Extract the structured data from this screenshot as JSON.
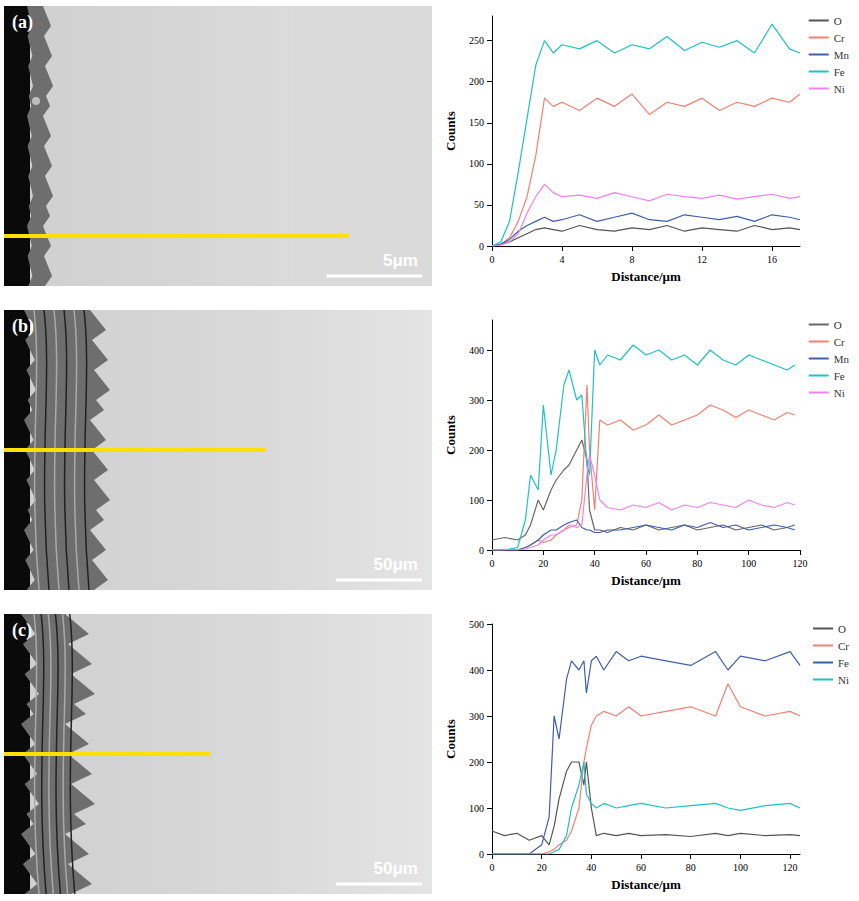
{
  "images": [
    {
      "label": "(a)",
      "scale_bar": "5μm"
    },
    {
      "label": "(b)",
      "scale_bar": "50μm"
    },
    {
      "label": "(c)",
      "scale_bar": "50μm"
    }
  ],
  "chart_data": [
    {
      "type": "line",
      "x_label": "Distance/μm",
      "y_label": "Counts",
      "legend": "right",
      "grid": false,
      "xlim": [
        0,
        17.6
      ],
      "xticks": [
        0,
        4,
        8,
        12,
        16
      ],
      "ylim": [
        0,
        280
      ],
      "yticks": [
        0,
        50,
        100,
        150,
        200,
        250
      ],
      "x": [
        0,
        0.5,
        1,
        1.5,
        2,
        2.5,
        3,
        3.5,
        4,
        5,
        6,
        7,
        8,
        9,
        10,
        11,
        12,
        13,
        14,
        15,
        16,
        17,
        17.6
      ],
      "series": [
        {
          "name": "O",
          "color": "#555555",
          "values": [
            0,
            2,
            5,
            10,
            15,
            20,
            22,
            20,
            18,
            25,
            20,
            18,
            22,
            20,
            25,
            18,
            22,
            20,
            18,
            25,
            20,
            22,
            20
          ]
        },
        {
          "name": "Cr",
          "color": "#f08070",
          "values": [
            0,
            2,
            10,
            30,
            60,
            110,
            180,
            170,
            175,
            165,
            180,
            170,
            185,
            160,
            175,
            170,
            180,
            165,
            175,
            170,
            180,
            175,
            185
          ]
        },
        {
          "name": "Mn",
          "color": "#3f5fa8",
          "values": [
            0,
            2,
            8,
            18,
            25,
            30,
            35,
            30,
            32,
            38,
            30,
            35,
            40,
            32,
            30,
            38,
            35,
            32,
            36,
            30,
            38,
            35,
            32
          ]
        },
        {
          "name": "Fe",
          "color": "#1fc0c8",
          "values": [
            0,
            5,
            30,
            90,
            155,
            220,
            250,
            235,
            245,
            240,
            250,
            235,
            245,
            240,
            255,
            238,
            248,
            242,
            250,
            235,
            270,
            240,
            235
          ]
        },
        {
          "name": "Ni",
          "color": "#ee82ee",
          "values": [
            0,
            1,
            5,
            15,
            40,
            60,
            75,
            65,
            60,
            62,
            58,
            65,
            60,
            55,
            63,
            60,
            58,
            62,
            57,
            60,
            63,
            58,
            60
          ]
        }
      ]
    },
    {
      "type": "line",
      "x_label": "Distance/μm",
      "y_label": "Counts",
      "legend": "right",
      "grid": false,
      "xlim": [
        0,
        120
      ],
      "xticks": [
        0,
        20,
        40,
        60,
        80,
        100,
        120
      ],
      "ylim": [
        0,
        460
      ],
      "yticks": [
        0,
        100,
        200,
        300,
        400
      ],
      "x": [
        0,
        5,
        10,
        13,
        15,
        18,
        20,
        23,
        25,
        28,
        30,
        33,
        35,
        37,
        38,
        40,
        42,
        45,
        50,
        55,
        60,
        65,
        70,
        75,
        80,
        85,
        90,
        95,
        100,
        105,
        110,
        115,
        118
      ],
      "series": [
        {
          "name": "O",
          "color": "#666666",
          "values": [
            20,
            25,
            20,
            30,
            50,
            100,
            80,
            120,
            140,
            160,
            170,
            200,
            220,
            180,
            80,
            40,
            40,
            35,
            45,
            40,
            50,
            40,
            45,
            50,
            40,
            45,
            50,
            40,
            45,
            50,
            40,
            45,
            50
          ]
        },
        {
          "name": "Cr",
          "color": "#f08070",
          "values": [
            0,
            0,
            0,
            5,
            10,
            20,
            15,
            20,
            30,
            40,
            45,
            50,
            100,
            330,
            200,
            80,
            260,
            250,
            260,
            240,
            250,
            270,
            250,
            260,
            270,
            290,
            280,
            265,
            280,
            270,
            260,
            275,
            270
          ]
        },
        {
          "name": "Mn",
          "color": "#3f5fa8",
          "values": [
            0,
            0,
            0,
            5,
            10,
            20,
            30,
            40,
            40,
            50,
            55,
            60,
            45,
            40,
            40,
            35,
            35,
            40,
            40,
            45,
            50,
            45,
            40,
            50,
            45,
            55,
            45,
            50,
            40,
            45,
            50,
            45,
            40
          ]
        },
        {
          "name": "Fe",
          "color": "#1fc0c8",
          "values": [
            0,
            0,
            5,
            60,
            150,
            120,
            290,
            150,
            200,
            330,
            360,
            300,
            310,
            170,
            150,
            400,
            370,
            390,
            380,
            410,
            390,
            400,
            380,
            390,
            370,
            400,
            380,
            370,
            390,
            380,
            370,
            360,
            370
          ]
        },
        {
          "name": "Ni",
          "color": "#ee82ee",
          "values": [
            0,
            0,
            0,
            2,
            5,
            10,
            20,
            30,
            30,
            40,
            50,
            45,
            50,
            150,
            190,
            150,
            100,
            85,
            80,
            90,
            85,
            95,
            80,
            90,
            85,
            95,
            90,
            85,
            100,
            90,
            85,
            95,
            90
          ]
        }
      ]
    },
    {
      "type": "line",
      "x_label": "Distance/μm",
      "y_label": "Counts",
      "legend": "right",
      "grid": false,
      "xlim": [
        0,
        124
      ],
      "xticks": [
        0,
        20,
        40,
        60,
        80,
        100,
        120
      ],
      "ylim": [
        0,
        500
      ],
      "yticks": [
        0,
        100,
        200,
        300,
        400,
        500
      ],
      "x": [
        0,
        5,
        10,
        15,
        20,
        23,
        25,
        27,
        30,
        32,
        35,
        37,
        38,
        40,
        42,
        45,
        50,
        55,
        60,
        70,
        80,
        90,
        95,
        100,
        110,
        120,
        124
      ],
      "series": [
        {
          "name": "O",
          "color": "#555555",
          "values": [
            50,
            40,
            45,
            30,
            40,
            20,
            60,
            120,
            180,
            200,
            200,
            150,
            200,
            100,
            40,
            45,
            40,
            45,
            40,
            42,
            38,
            45,
            40,
            45,
            40,
            42,
            40
          ]
        },
        {
          "name": "Cr",
          "color": "#f08070",
          "values": [
            0,
            0,
            0,
            0,
            0,
            5,
            10,
            20,
            30,
            50,
            100,
            200,
            230,
            280,
            300,
            310,
            300,
            320,
            300,
            310,
            320,
            300,
            370,
            320,
            300,
            310,
            300
          ]
        },
        {
          "name": "Fe",
          "color": "#3f5fa8",
          "values": [
            0,
            0,
            0,
            0,
            20,
            80,
            300,
            250,
            380,
            420,
            400,
            420,
            350,
            420,
            430,
            400,
            440,
            420,
            430,
            420,
            410,
            440,
            400,
            430,
            420,
            440,
            410
          ]
        },
        {
          "name": "Ni",
          "color": "#1fc0c8",
          "values": [
            0,
            0,
            0,
            0,
            0,
            0,
            5,
            10,
            40,
            100,
            150,
            200,
            130,
            110,
            100,
            110,
            100,
            105,
            110,
            100,
            105,
            110,
            100,
            95,
            105,
            110,
            100
          ]
        }
      ]
    }
  ]
}
